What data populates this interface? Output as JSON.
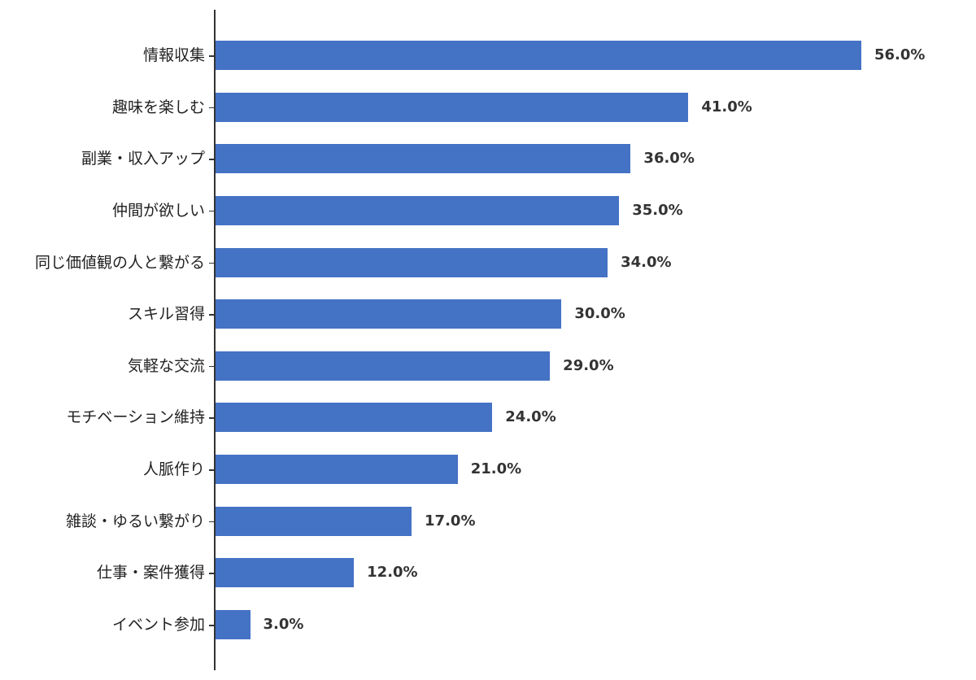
{
  "chart_data": {
    "type": "bar",
    "orientation": "horizontal",
    "title": "",
    "xlabel": "",
    "ylabel": "",
    "xlim": [
      0,
      56
    ],
    "grid": false,
    "legend": null,
    "bar_color": "#4472C4",
    "value_format": "{v}%",
    "categories": [
      "情報収集",
      "趣味を楽しむ",
      "副業・収入アップ",
      "仲間が欲しい",
      "同じ価値観の人と繋がる",
      "スキル習得",
      "気軽な交流",
      "モチベーション維持",
      "人脈作り",
      "雑談・ゆるい繋がり",
      "仕事・案件獲得",
      "イベント参加"
    ],
    "values": [
      56.0,
      41.0,
      36.0,
      35.0,
      34.0,
      30.0,
      29.0,
      24.0,
      21.0,
      17.0,
      12.0,
      3.0
    ],
    "labels": [
      "56.0%",
      "41.0%",
      "36.0%",
      "35.0%",
      "34.0%",
      "30.0%",
      "29.0%",
      "24.0%",
      "21.0%",
      "17.0%",
      "12.0%",
      "3.0%"
    ]
  }
}
